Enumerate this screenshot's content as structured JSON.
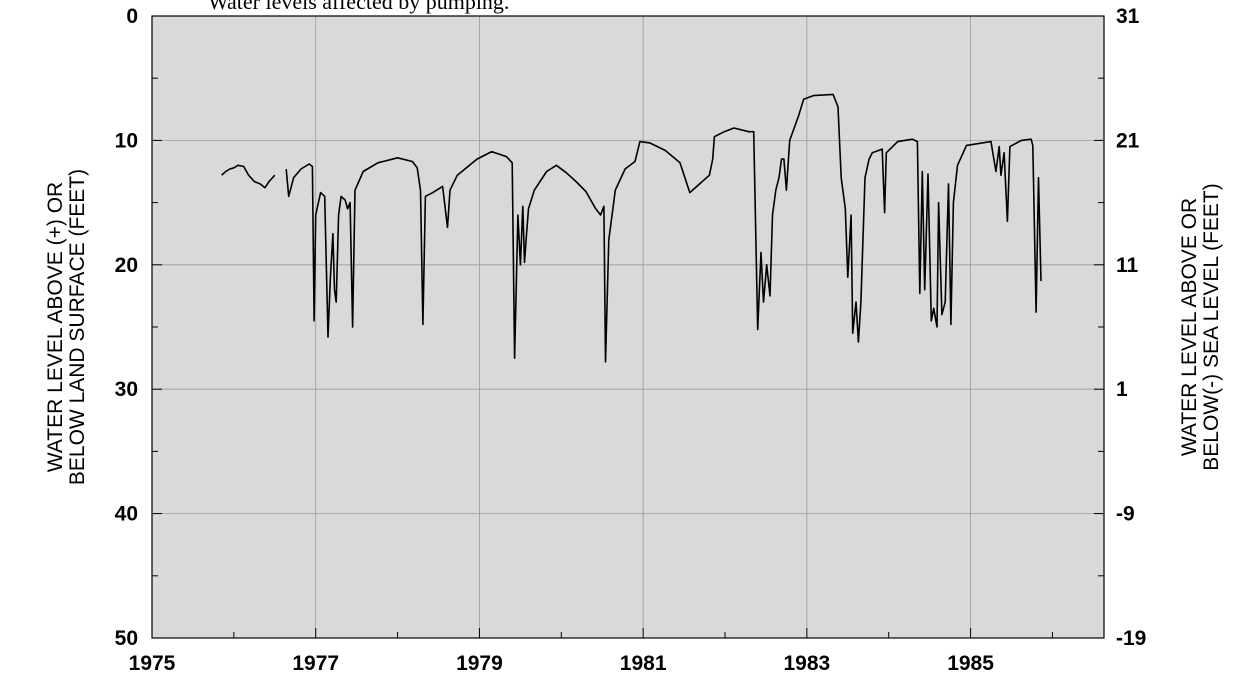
{
  "chart_data": {
    "type": "line",
    "annotation": "Water levels affected by pumping.",
    "ylabel": [
      "WATER LEVEL ABOVE (+) OR",
      "BELOW LAND SURFACE (FEET)"
    ],
    "y2label": [
      "WATER LEVEL ABOVE OR",
      "BELOW(-) SEA LEVEL (FEET)"
    ],
    "xlim": [
      1975,
      1986.63
    ],
    "xticks": [
      1975,
      1977,
      1979,
      1981,
      1983,
      1985
    ],
    "xminorticks": [
      1976,
      1978,
      1980,
      1982,
      1984,
      1986
    ],
    "ylim": [
      0,
      50
    ],
    "yinverted": true,
    "yticks": [
      0,
      10,
      20,
      30,
      40,
      50
    ],
    "yminorticks": [
      5,
      15,
      25,
      35,
      45
    ],
    "y2lim": [
      31,
      -19
    ],
    "y2ticks": [
      31,
      21,
      11,
      1,
      -9,
      -19
    ],
    "grid": true,
    "background": "#d9d9d9",
    "color": "#000000",
    "x": [
      1975.85,
      1975.9,
      1975.95,
      1976.0,
      1976.05,
      1976.12,
      1976.18,
      1976.25,
      1976.32,
      1976.38,
      1976.43,
      1976.5,
      1976.57,
      1976.64,
      1976.67,
      1976.73,
      1976.82,
      1976.92,
      1976.96,
      1976.98,
      1977.0,
      1977.06,
      1977.11,
      1977.15,
      1977.18,
      1977.21,
      1977.23,
      1977.25,
      1977.28,
      1977.31,
      1977.36,
      1977.39,
      1977.42,
      1977.45,
      1977.48,
      1977.58,
      1977.76,
      1978.0,
      1978.18,
      1978.24,
      1978.28,
      1978.31,
      1978.34,
      1978.43,
      1978.55,
      1978.61,
      1978.64,
      1978.73,
      1978.97,
      1979.15,
      1979.33,
      1979.4,
      1979.43,
      1979.47,
      1979.5,
      1979.53,
      1979.55,
      1979.57,
      1979.6,
      1979.67,
      1979.82,
      1979.94,
      1980.06,
      1980.18,
      1980.3,
      1980.42,
      1980.48,
      1980.52,
      1980.54,
      1980.58,
      1980.66,
      1980.78,
      1980.9,
      1980.96,
      1981.08,
      1981.27,
      1981.45,
      1981.57,
      1981.69,
      1981.81,
      1981.85,
      1981.87,
      1981.99,
      1982.11,
      1982.29,
      1982.35,
      1982.4,
      1982.44,
      1982.47,
      1982.51,
      1982.55,
      1982.58,
      1982.62,
      1982.66,
      1982.69,
      1982.72,
      1982.75,
      1982.79,
      1982.9,
      1982.96,
      1983.08,
      1983.32,
      1983.38,
      1983.42,
      1983.47,
      1983.5,
      1983.54,
      1983.56,
      1983.6,
      1983.63,
      1983.66,
      1983.71,
      1983.76,
      1983.8,
      1983.92,
      1983.95,
      1983.97,
      1984.11,
      1984.29,
      1984.35,
      1984.38,
      1984.41,
      1984.44,
      1984.48,
      1984.52,
      1984.55,
      1984.59,
      1984.61,
      1984.65,
      1984.69,
      1984.73,
      1984.76,
      1984.79,
      1984.84,
      1984.95,
      1985.25,
      1985.31,
      1985.35,
      1985.37,
      1985.41,
      1985.45,
      1985.48,
      1985.62,
      1985.74,
      1985.76,
      1985.8,
      1985.83,
      1985.86
    ],
    "values": [
      12.8,
      12.5,
      12.3,
      12.2,
      12.0,
      12.1,
      12.8,
      13.3,
      13.5,
      13.8,
      13.3,
      12.8,
      null,
      12.3,
      14.5,
      13.0,
      12.3,
      11.9,
      12.1,
      24.5,
      16,
      14.2,
      14.5,
      25.8,
      21,
      17.5,
      22,
      23,
      16,
      14.5,
      14.8,
      15.5,
      15,
      25,
      14,
      12.5,
      11.8,
      11.4,
      11.7,
      12.2,
      14,
      24.8,
      14.5,
      14.2,
      13.7,
      17,
      14,
      12.8,
      11.5,
      10.9,
      11.3,
      11.8,
      27.5,
      16,
      20,
      15.3,
      19.8,
      18,
      15.5,
      14,
      12.5,
      12.0,
      12.6,
      13.3,
      14.1,
      15.5,
      16,
      15.3,
      27.8,
      18,
      14,
      12.3,
      11.7,
      10.1,
      10.2,
      10.8,
      11.8,
      14.2,
      13.5,
      12.8,
      11.5,
      9.7,
      9.3,
      9.0,
      9.3,
      9.3,
      25.2,
      19,
      23,
      20,
      22.5,
      16,
      14,
      13,
      11.5,
      11.5,
      14,
      10,
      8,
      6.7,
      6.4,
      6.3,
      7.3,
      13,
      15.5,
      21,
      16,
      25.5,
      23,
      26.2,
      23,
      13,
      11.5,
      11,
      10.7,
      15.8,
      11,
      10.1,
      9.9,
      10.1,
      22.3,
      12.5,
      22,
      12.7,
      24.5,
      23.5,
      25,
      15,
      24,
      23,
      13.5,
      24.8,
      15,
      12,
      10.4,
      10.1,
      12.5,
      10.5,
      12.8,
      11,
      16.5,
      10.5,
      10.0,
      9.9,
      10.4,
      23.8,
      13,
      21.3
    ]
  }
}
